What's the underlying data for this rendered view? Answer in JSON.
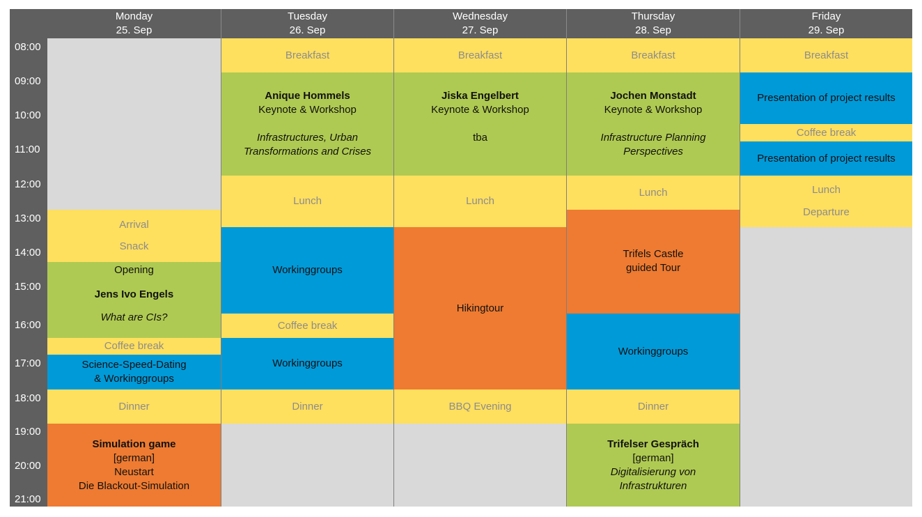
{
  "times": [
    "08:00",
    "09:00",
    "10:00",
    "11:00",
    "12:00",
    "13:00",
    "14:00",
    "15:00",
    "16:00",
    "17:00",
    "18:00",
    "19:00",
    "20:00",
    "21:00"
  ],
  "days": [
    {
      "name": "Monday",
      "date": "25. Sep"
    },
    {
      "name": "Tuesday",
      "date": "26. Sep"
    },
    {
      "name": "Wednesday",
      "date": "27. Sep"
    },
    {
      "name": "Thursday",
      "date": "28. Sep"
    },
    {
      "name": "Friday",
      "date": "29. Sep"
    }
  ],
  "monday": {
    "arrival": "Arrival",
    "snack": "Snack",
    "opening": "Opening",
    "speaker": "Jens Ivo Engels",
    "talk": "What are CIs?",
    "coffee": "Coffee break",
    "speed_dating_1": "Science-Speed-Dating",
    "speed_dating_2": "& Workinggroups",
    "dinner": "Dinner",
    "game_title": "Simulation game",
    "game_lang": "[german]",
    "game_line1": "Neustart",
    "game_line2": "Die Blackout-Simulation"
  },
  "tuesday": {
    "breakfast": "Breakfast",
    "speaker": "Anique Hommels",
    "format": "Keynote & Workshop",
    "topic_1": "Infrastructures, Urban",
    "topic_2": "Transformations and Crises",
    "lunch": "Lunch",
    "workinggroups_1": "Workinggroups",
    "coffee": "Coffee break",
    "workinggroups_2": "Workinggroups",
    "dinner": "Dinner"
  },
  "wednesday": {
    "breakfast": "Breakfast",
    "speaker": "Jiska Engelbert",
    "format": "Keynote & Workshop",
    "topic": "tba",
    "lunch": "Lunch",
    "hiking": "Hikingtour",
    "bbq": "BBQ Evening"
  },
  "thursday": {
    "breakfast": "Breakfast",
    "speaker": "Jochen Monstadt",
    "format": "Keynote & Workshop",
    "topic_1": "Infrastructure Planning",
    "topic_2": "Perspectives",
    "lunch": "Lunch",
    "castle_1": "Trifels Castle",
    "castle_2": "guided Tour",
    "workinggroups": "Workinggroups",
    "dinner": "Dinner",
    "talk_title": "Trifelser Gespräch",
    "talk_lang": "[german]",
    "talk_topic_1": "Digitalisierung von",
    "talk_topic_2": "Infrastrukturen"
  },
  "friday": {
    "breakfast": "Breakfast",
    "presentation_1": "Presentation of project results",
    "coffee": "Coffee break",
    "presentation_2": "Presentation of project results",
    "lunch": "Lunch",
    "departure": "Departure"
  },
  "colors": {
    "header": "#5f5f5f",
    "empty": "#d9d9d9",
    "meal": "#ffdf5e",
    "keynote": "#afca52",
    "workinggroup": "#009ad9",
    "excursion": "#ee7b31"
  }
}
